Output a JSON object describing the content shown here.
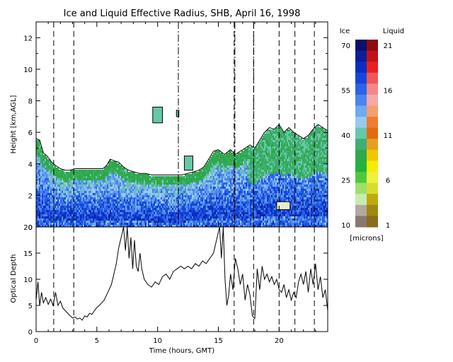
{
  "chart_data": [
    {
      "type": "heatmap",
      "title": "Ice and Liquid Effective Radius, SHB, April 16, 1998",
      "xlabel": "",
      "ylabel": "Height [km,AGL]",
      "xlim": [
        0,
        24
      ],
      "ylim": [
        0,
        13
      ],
      "yticks": [
        "0",
        "2",
        "4",
        "6",
        "8",
        "10",
        "12"
      ],
      "dashed_lines_hours": [
        1.45,
        3.1,
        16.3,
        17.9,
        20.0,
        21.3,
        22.9
      ],
      "dashdot_lines_hours": [
        11.65,
        16.3,
        17.85
      ],
      "cloud_top_km": [
        [
          0.0,
          5.6
        ],
        [
          0.3,
          5.5
        ],
        [
          0.6,
          4.7
        ],
        [
          0.9,
          4.5
        ],
        [
          1.3,
          4.1
        ],
        [
          1.6,
          3.9
        ],
        [
          2.0,
          3.7
        ],
        [
          2.4,
          3.6
        ],
        [
          2.8,
          3.6
        ],
        [
          3.2,
          3.7
        ],
        [
          3.6,
          3.7
        ],
        [
          4.0,
          3.7
        ],
        [
          4.5,
          3.7
        ],
        [
          5.0,
          3.7
        ],
        [
          5.5,
          3.7
        ],
        [
          5.8,
          3.9
        ],
        [
          6.1,
          4.3
        ],
        [
          6.4,
          4.2
        ],
        [
          6.8,
          4.1
        ],
        [
          7.2,
          3.8
        ],
        [
          7.6,
          3.6
        ],
        [
          8.0,
          3.5
        ],
        [
          8.5,
          3.4
        ],
        [
          9.0,
          3.4
        ],
        [
          9.5,
          3.3
        ],
        [
          10.0,
          3.3
        ],
        [
          10.5,
          3.3
        ],
        [
          11.0,
          3.3
        ],
        [
          11.5,
          3.3
        ],
        [
          12.0,
          3.3
        ],
        [
          12.5,
          3.4
        ],
        [
          13.0,
          3.5
        ],
        [
          13.4,
          3.6
        ],
        [
          13.8,
          3.8
        ],
        [
          14.2,
          4.3
        ],
        [
          14.6,
          4.8
        ],
        [
          15.0,
          4.9
        ],
        [
          15.5,
          4.6
        ],
        [
          16.0,
          4.9
        ],
        [
          16.4,
          4.6
        ],
        [
          16.8,
          4.8
        ],
        [
          17.2,
          5.0
        ],
        [
          17.6,
          5.2
        ],
        [
          18.0,
          5.0
        ],
        [
          18.4,
          5.5
        ],
        [
          18.8,
          6.0
        ],
        [
          19.2,
          6.3
        ],
        [
          19.6,
          6.2
        ],
        [
          20.0,
          6.5
        ],
        [
          20.4,
          6.0
        ],
        [
          20.8,
          6.3
        ],
        [
          21.2,
          6.0
        ],
        [
          21.6,
          5.8
        ],
        [
          22.0,
          5.6
        ],
        [
          22.4,
          5.8
        ],
        [
          22.8,
          6.2
        ],
        [
          23.2,
          6.5
        ],
        [
          23.6,
          6.3
        ],
        [
          24.0,
          6.1
        ]
      ],
      "liquid_patches": [
        {
          "x": [
            19.8,
            20.9
          ],
          "y": [
            1.1,
            1.6
          ]
        }
      ],
      "isolated_cloud_patches": [
        {
          "x": [
            9.6,
            10.4
          ],
          "y": [
            6.6,
            7.6
          ]
        },
        {
          "x": [
            11.55,
            11.75
          ],
          "y": [
            7.0,
            7.4
          ]
        },
        {
          "x": [
            12.2,
            12.9
          ],
          "y": [
            3.6,
            4.5
          ]
        }
      ]
    },
    {
      "type": "line",
      "title": "",
      "xlabel": "Time (hours, GMT)",
      "ylabel": "Optical Depth",
      "xlim": [
        0,
        24
      ],
      "ylim": [
        0,
        20
      ],
      "xticks": [
        "0",
        "5",
        "10",
        "15",
        "20"
      ],
      "yticks": [
        "0",
        "5",
        "10",
        "15",
        "20"
      ],
      "dashed_lines_hours": [
        1.45,
        3.1,
        16.3,
        17.9,
        20.0,
        21.3,
        22.9
      ],
      "series": [
        {
          "name": "",
          "points": [
            [
              0.0,
              6.0
            ],
            [
              0.15,
              9.5
            ],
            [
              0.3,
              5.0
            ],
            [
              0.45,
              7.5
            ],
            [
              0.6,
              5.5
            ],
            [
              0.8,
              6.5
            ],
            [
              1.0,
              5.2
            ],
            [
              1.2,
              6.2
            ],
            [
              1.4,
              5.0
            ],
            [
              1.6,
              7.5
            ],
            [
              1.8,
              5.0
            ],
            [
              2.0,
              5.8
            ],
            [
              2.2,
              4.5
            ],
            [
              2.4,
              4.0
            ],
            [
              2.6,
              3.5
            ],
            [
              2.8,
              3.0
            ],
            [
              3.0,
              2.6
            ],
            [
              3.2,
              2.8
            ],
            [
              3.4,
              2.4
            ],
            [
              3.6,
              2.6
            ],
            [
              3.8,
              2.2
            ],
            [
              4.0,
              3.0
            ],
            [
              4.2,
              2.8
            ],
            [
              4.4,
              3.5
            ],
            [
              4.6,
              3.3
            ],
            [
              4.8,
              4.0
            ],
            [
              5.0,
              4.6
            ],
            [
              5.2,
              5.0
            ],
            [
              5.4,
              5.5
            ],
            [
              5.6,
              6.0
            ],
            [
              5.8,
              7.0
            ],
            [
              6.0,
              8.0
            ],
            [
              6.2,
              9.0
            ],
            [
              6.4,
              11.0
            ],
            [
              6.6,
              13.0
            ],
            [
              6.8,
              16.0
            ],
            [
              7.0,
              18.0
            ],
            [
              7.2,
              20.0
            ],
            [
              7.35,
              15.5
            ],
            [
              7.5,
              20.0
            ],
            [
              7.65,
              14.0
            ],
            [
              7.8,
              18.0
            ],
            [
              7.95,
              12.0
            ],
            [
              8.1,
              17.5
            ],
            [
              8.25,
              12.5
            ],
            [
              8.4,
              11.5
            ],
            [
              8.55,
              15.0
            ],
            [
              8.7,
              12.0
            ],
            [
              8.9,
              10.0
            ],
            [
              9.2,
              9.0
            ],
            [
              9.5,
              8.5
            ],
            [
              9.8,
              9.5
            ],
            [
              10.1,
              9.0
            ],
            [
              10.4,
              10.5
            ],
            [
              10.7,
              11.0
            ],
            [
              11.0,
              10.0
            ],
            [
              11.3,
              11.5
            ],
            [
              11.6,
              12.0
            ],
            [
              11.9,
              12.5
            ],
            [
              12.2,
              12.0
            ],
            [
              12.5,
              12.5
            ],
            [
              12.8,
              12.0
            ],
            [
              13.1,
              13.0
            ],
            [
              13.4,
              12.5
            ],
            [
              13.7,
              13.5
            ],
            [
              14.0,
              13.0
            ],
            [
              14.3,
              14.0
            ],
            [
              14.6,
              15.0
            ],
            [
              14.9,
              18.0
            ],
            [
              15.1,
              20.0
            ],
            [
              15.25,
              14.0
            ],
            [
              15.4,
              20.0
            ],
            [
              15.55,
              10.0
            ],
            [
              15.7,
              5.0
            ],
            [
              15.85,
              7.0
            ],
            [
              16.0,
              11.0
            ],
            [
              16.2,
              8.0
            ],
            [
              16.4,
              14.0
            ],
            [
              16.6,
              12.0
            ],
            [
              16.8,
              9.0
            ],
            [
              17.0,
              11.0
            ],
            [
              17.2,
              6.0
            ],
            [
              17.4,
              9.0
            ],
            [
              17.6,
              7.0
            ],
            [
              17.8,
              3.0
            ],
            [
              18.0,
              2.5
            ],
            [
              18.2,
              12.0
            ],
            [
              18.4,
              8.0
            ],
            [
              18.6,
              12.5
            ],
            [
              18.8,
              10.0
            ],
            [
              19.0,
              11.0
            ],
            [
              19.2,
              9.5
            ],
            [
              19.4,
              10.5
            ],
            [
              19.6,
              9.0
            ],
            [
              19.8,
              10.0
            ],
            [
              20.0,
              8.0
            ],
            [
              20.2,
              7.5
            ],
            [
              20.4,
              9.0
            ],
            [
              20.6,
              6.5
            ],
            [
              20.8,
              8.0
            ],
            [
              21.0,
              6.0
            ],
            [
              21.2,
              7.5
            ],
            [
              21.4,
              6.5
            ],
            [
              21.6,
              9.5
            ],
            [
              21.8,
              11.0
            ],
            [
              22.0,
              9.0
            ],
            [
              22.2,
              11.5
            ],
            [
              22.4,
              7.5
            ],
            [
              22.6,
              12.0
            ],
            [
              22.8,
              9.0
            ],
            [
              23.0,
              13.0
            ],
            [
              23.2,
              8.0
            ],
            [
              23.4,
              10.5
            ],
            [
              23.6,
              6.5
            ],
            [
              23.8,
              8.0
            ],
            [
              24.0,
              4.0
            ]
          ]
        }
      ]
    }
  ],
  "colorbar": {
    "ice_label": "Ice",
    "liquid_label": "Liquid",
    "unit_label": "[microns]",
    "ice_ticks": [
      "70",
      "55",
      "40",
      "25",
      "10"
    ],
    "liquid_ticks": [
      "21",
      "16",
      "11",
      "6",
      "1"
    ],
    "ice_colors": [
      "#0a0f6e",
      "#0c1f96",
      "#0a2fc0",
      "#1645dc",
      "#2a63e6",
      "#4a86ec",
      "#70aaf0",
      "#98c9f0",
      "#66c8a8",
      "#3fae70",
      "#2ea84a",
      "#20b43a",
      "#50c83c",
      "#9ee06c",
      "#c8ecb0",
      "#b4a8a0",
      "#8a7870"
    ],
    "liquid_colors": [
      "#8c0a10",
      "#c41018",
      "#e8201e",
      "#f05858",
      "#f48888",
      "#f4a8a8",
      "#f2a070",
      "#ee7c30",
      "#e46a10",
      "#e6a020",
      "#f0c800",
      "#f8ec00",
      "#f0f040",
      "#d8dc30",
      "#c0a810",
      "#a08810",
      "#8a6c1a"
    ]
  }
}
